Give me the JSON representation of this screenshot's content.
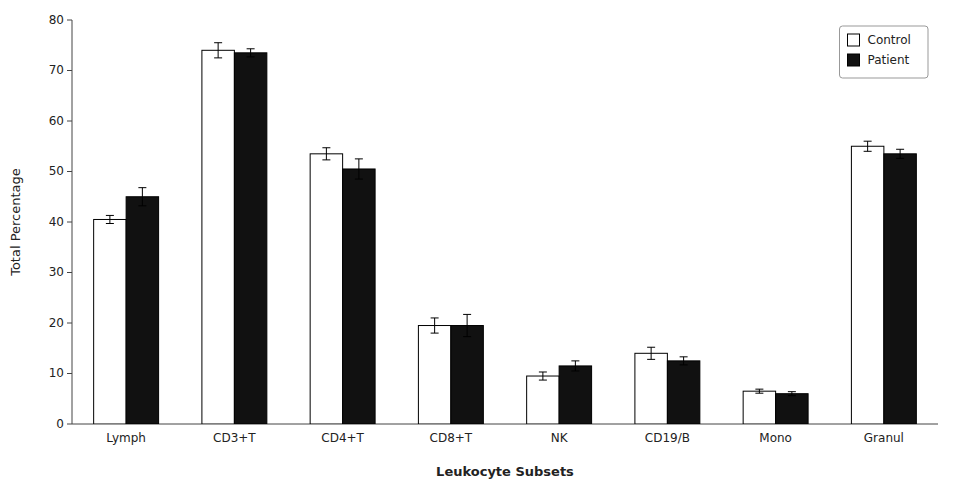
{
  "chart_data": {
    "type": "bar",
    "xlabel": "Leukocyte Subsets",
    "ylabel": "Total Percentage",
    "categories": [
      "Lymph",
      "CD3+T",
      "CD4+T",
      "CD8+T",
      "NK",
      "CD19/B",
      "Mono",
      "Granul"
    ],
    "series": [
      {
        "name": "Control",
        "color": "#ffffff",
        "values": [
          40.5,
          74.0,
          53.5,
          19.5,
          9.5,
          14.0,
          6.5,
          55.0
        ],
        "errors": [
          0.8,
          1.5,
          1.2,
          1.5,
          0.8,
          1.2,
          0.4,
          1.0
        ]
      },
      {
        "name": "Patient",
        "color": "#111111",
        "values": [
          45.0,
          73.5,
          50.5,
          19.5,
          11.5,
          12.5,
          6.0,
          53.5
        ],
        "errors": [
          1.8,
          0.8,
          2.0,
          2.2,
          1.0,
          0.8,
          0.4,
          0.9
        ]
      }
    ],
    "ylim": [
      0,
      80
    ],
    "yticks": [
      0,
      10,
      20,
      30,
      40,
      50,
      60,
      70,
      80
    ],
    "grid": false,
    "legend": "upper right"
  }
}
